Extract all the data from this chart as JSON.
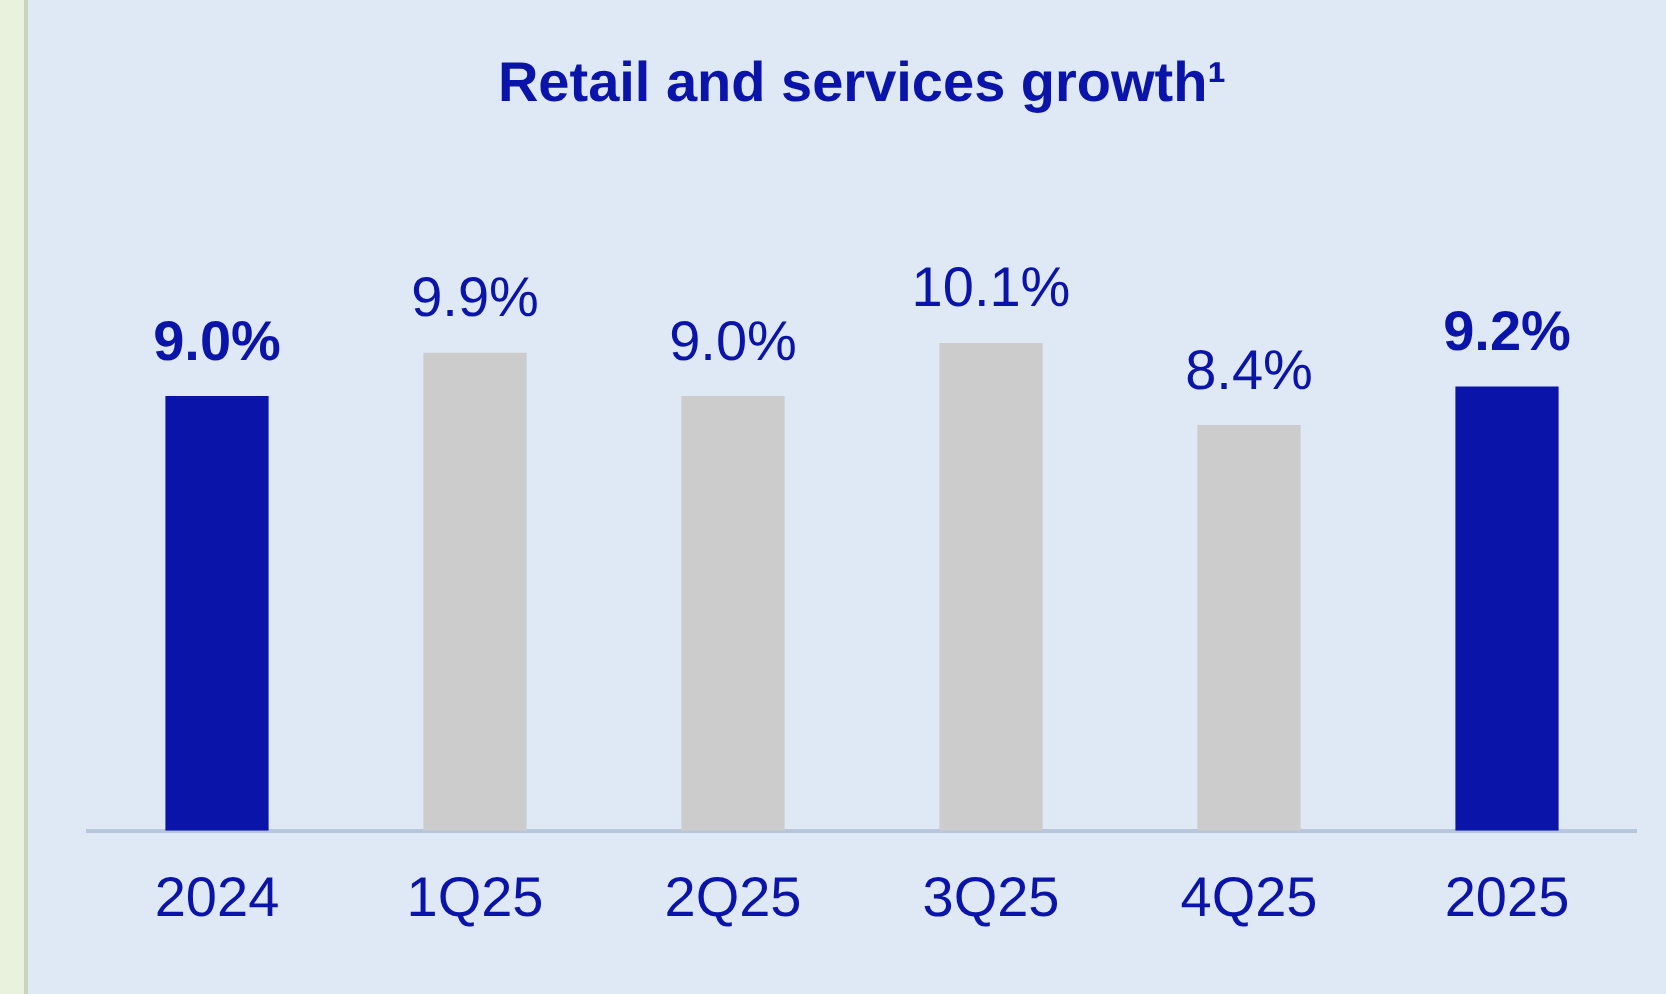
{
  "chart_data": {
    "type": "bar",
    "title": "Retail and services growth¹",
    "categories": [
      "2024",
      "1Q25",
      "2Q25",
      "3Q25",
      "4Q25",
      "2025"
    ],
    "values": [
      9.0,
      9.9,
      9.0,
      10.1,
      8.4,
      9.2
    ],
    "colors": [
      "#0a14a8",
      "#cccccc",
      "#cccccc",
      "#cccccc",
      "#cccccc",
      "#0a14a8"
    ],
    "value_labels": [
      "9.0%",
      "9.9%",
      "9.0%",
      "10.1%",
      "8.4%",
      "9.2%"
    ],
    "grid": false,
    "legend": false
  }
}
